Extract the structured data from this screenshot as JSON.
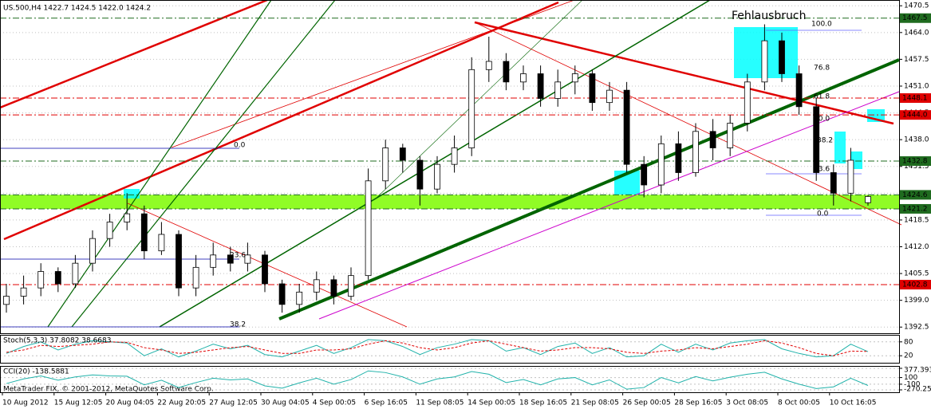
{
  "chart_data": [
    {
      "type": "candlestick",
      "title": "US.500,H4  1422.7 1424.5 1422.0 1424.2",
      "annotation": "Fehlausbruch",
      "fib_labels": [
        "100.0",
        "76.8",
        "61.8",
        "50.0",
        "38.2",
        "23.6",
        "0.0",
        "0.0",
        "23.6",
        "38.2"
      ],
      "footer": "MetaTrader FIX, © 2001-2012, MetaQuotes Software Corp.",
      "categories": [
        "10 Aug 2012",
        null,
        null,
        "15 Aug 12:05",
        null,
        null,
        "20 Aug 04:05",
        null,
        null,
        "22 Aug 20:05",
        null,
        null,
        "27 Aug 12:05",
        null,
        null,
        "30 Aug 04:05",
        null,
        null,
        "4 Sep 00:05",
        null,
        null,
        "6 Sep 16:05",
        null,
        null,
        "11 Sep 08:05",
        null,
        null,
        "14 Sep 00:05",
        null,
        null,
        "18 Sep 16:05",
        null,
        null,
        "21 Sep 08:05",
        null,
        null,
        "26 Sep 00:05",
        null,
        null,
        "28 Sep 16:05",
        null,
        null,
        "3 Oct 08:05",
        null,
        null,
        "8 Oct 00:05",
        null,
        null,
        "10 Oct 16:05",
        null,
        null
      ],
      "open": [
        1398,
        1400,
        1402,
        1406,
        1403,
        1408,
        1414,
        1418,
        1420,
        1411,
        1415,
        1402,
        1407,
        1410,
        1408,
        1410,
        1403,
        1398,
        1401,
        1404,
        1400,
        1405,
        1428,
        1436,
        1433,
        1426,
        1432,
        1436,
        1455,
        1457,
        1452,
        1454,
        1448,
        1452,
        1454,
        1447,
        1450,
        1432,
        1427,
        1437,
        1430,
        1440,
        1436,
        1442,
        1452,
        1462,
        1454,
        1446,
        1430,
        1425,
        1422.7
      ],
      "high": [
        1403,
        1405,
        1408,
        1407,
        1410,
        1416,
        1420,
        1425,
        1422,
        1418,
        1416,
        1410,
        1413,
        1412,
        1413,
        1411,
        1404,
        1403,
        1406,
        1405,
        1407,
        1431,
        1438,
        1437,
        1434,
        1434,
        1439,
        1458,
        1463,
        1459,
        1456,
        1456,
        1455,
        1456,
        1455,
        1452,
        1452,
        1434,
        1439,
        1440,
        1442,
        1443,
        1444,
        1454,
        1466,
        1464,
        1456,
        1448,
        1432,
        1436,
        1424.5
      ],
      "low": [
        1396,
        1398,
        1400,
        1401,
        1402,
        1406,
        1412,
        1416,
        1409,
        1410,
        1400,
        1400,
        1405,
        1406,
        1406,
        1401,
        1396,
        1396,
        1399,
        1398,
        1399,
        1404,
        1426,
        1430,
        1422,
        1425,
        1430,
        1434,
        1452,
        1450,
        1450,
        1446,
        1446,
        1449,
        1445,
        1445,
        1430,
        1424,
        1425,
        1428,
        1429,
        1433,
        1434,
        1440,
        1450,
        1452,
        1444,
        1428,
        1422,
        1423,
        1422.0
      ],
      "close": [
        1400,
        1402,
        1406,
        1403,
        1408,
        1414,
        1418,
        1420,
        1411,
        1415,
        1402,
        1407,
        1410,
        1408,
        1410,
        1403,
        1398,
        1401,
        1404,
        1400,
        1405,
        1428,
        1436,
        1433,
        1426,
        1432,
        1436,
        1455,
        1457,
        1452,
        1454,
        1448,
        1452,
        1454,
        1447,
        1450,
        1432,
        1427,
        1437,
        1430,
        1440,
        1436,
        1442,
        1452,
        1462,
        1454,
        1446,
        1430,
        1425,
        1433,
        1424.2
      ],
      "up_color": "#ffffff",
      "down_color": "#000000",
      "ylim": [
        1391.0,
        1471.9
      ],
      "yticks": [
        1392.5,
        {
          "value": 1399,
          "label": "1399.0"
        },
        1405.5,
        {
          "value": 1412,
          "label": "1412.0"
        },
        1418.5,
        {
          "value": 1425,
          "label": "1425.0"
        },
        1431.5,
        {
          "value": 1438,
          "label": "1438.0"
        },
        1444.5,
        {
          "value": 1451,
          "label": "1451.0"
        },
        1457.5,
        {
          "value": 1464,
          "label": "1464.0"
        },
        1470.5
      ],
      "grid": true,
      "levels": [
        {
          "value": 1467.5,
          "color": "#1f6b1f"
        },
        {
          "value": 1448.1,
          "color": "#e00000"
        },
        {
          "value": 1444,
          "label": "1444.0",
          "color": "#e00000"
        },
        {
          "value": 1432.8,
          "color": "#1f6b1f"
        },
        {
          "value": 1424.6,
          "color": "#1f6b1f"
        },
        {
          "value": 1421.2,
          "color": "#1f6b1f"
        },
        {
          "value": 1402.8,
          "color": "#e00000"
        }
      ],
      "zone_color": "#7cfc00"
    },
    {
      "type": "line",
      "title": "Stoch(5,3,3) 37.8082 38.6683",
      "series": [
        {
          "color": "#20b2aa",
          "values": [
            30,
            60,
            80,
            45,
            70,
            85,
            80,
            75,
            20,
            50,
            15,
            40,
            70,
            50,
            65,
            25,
            15,
            40,
            65,
            30,
            55,
            90,
            85,
            60,
            25,
            55,
            70,
            90,
            85,
            40,
            55,
            25,
            60,
            75,
            30,
            55,
            15,
            20,
            70,
            35,
            70,
            45,
            75,
            85,
            90,
            50,
            30,
            15,
            20,
            70,
            37.8082
          ]
        },
        {
          "color": "#e00000",
          "values": [
            35,
            45,
            65,
            60,
            65,
            70,
            80,
            78,
            55,
            45,
            30,
            35,
            45,
            55,
            60,
            45,
            30,
            30,
            45,
            45,
            50,
            70,
            85,
            75,
            55,
            45,
            55,
            75,
            85,
            70,
            55,
            40,
            45,
            55,
            55,
            50,
            35,
            30,
            40,
            45,
            55,
            50,
            60,
            70,
            85,
            75,
            55,
            30,
            20,
            40,
            38.6683
          ]
        }
      ],
      "ylim": [
        0,
        100
      ],
      "yticks": [
        20,
        80
      ]
    },
    {
      "type": "line",
      "title": "CCI(20) -138.5881",
      "series": [
        {
          "color": "#20b2aa",
          "values": [
            -80,
            60,
            150,
            20,
            120,
            180,
            150,
            140,
            -120,
            20,
            -200,
            -50,
            80,
            30,
            60,
            -150,
            -220,
            -60,
            80,
            -100,
            40,
            300,
            250,
            120,
            -100,
            60,
            120,
            280,
            200,
            -50,
            40,
            -120,
            60,
            100,
            -120,
            30,
            -250,
            -200,
            100,
            -60,
            130,
            0,
            110,
            200,
            260,
            60,
            -100,
            -230,
            -180,
            80,
            -138.5881
          ]
        }
      ],
      "ylim": [
        -270.256,
        377.393
      ],
      "yticks": [
        -270.256,
        -100,
        100,
        377.393
      ]
    }
  ]
}
